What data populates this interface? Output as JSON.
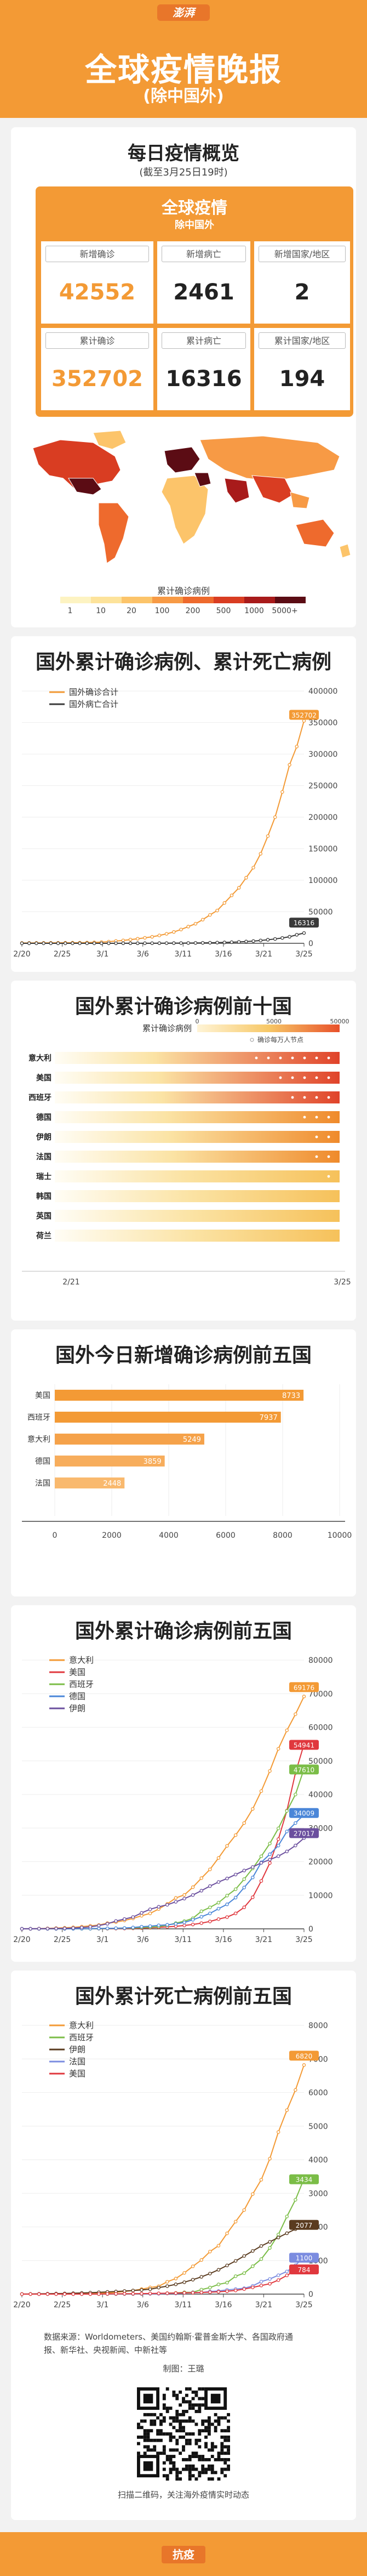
{
  "header": {
    "logo": "澎湃",
    "title": "全球疫情晚报",
    "subtitle": "(除中国外)"
  },
  "overview": {
    "title": "每日疫情概览",
    "date_note": "(截至3月25日19时)",
    "card_title": "全球疫情",
    "card_subtitle": "除中国外",
    "stats": [
      {
        "label": "新增确诊",
        "value": "42552"
      },
      {
        "label": "新增病亡",
        "value": "2461"
      },
      {
        "label": "新增国家/地区",
        "value": "2"
      },
      {
        "label": "累计确诊",
        "value": "352702"
      },
      {
        "label": "累计病亡",
        "value": "16316"
      },
      {
        "label": "累计国家/地区",
        "value": "194"
      }
    ]
  },
  "map": {
    "legend_title": "累计确诊病例",
    "legend_labels": [
      "1",
      "10",
      "20",
      "100",
      "200",
      "500",
      "1000",
      "5000+"
    ],
    "legend_colors": [
      "#fdf3c2",
      "#fde39b",
      "#fcc46a",
      "#f79a45",
      "#ee6a2d",
      "#d93d22",
      "#a81b1b",
      "#5b0c14"
    ]
  },
  "chart_data": [
    {
      "type": "line",
      "title": "国外累计确诊病例、累计死亡病例",
      "x_ticks": [
        "2/20",
        "2/25",
        "3/1",
        "3/6",
        "3/11",
        "3/16",
        "3/21",
        "3/25"
      ],
      "ylim": [
        0,
        400000
      ],
      "y_ticks": [
        "0",
        "50000",
        "100000",
        "150000",
        "200000",
        "250000",
        "300000",
        "350000",
        "400000"
      ],
      "series": [
        {
          "name": "国外确诊合计",
          "color": "#f39a35",
          "end_label": "352702",
          "values": [
            500,
            560,
            630,
            690,
            760,
            800,
            870,
            930,
            1030,
            1200,
            1500,
            1900,
            2600,
            3600,
            4600,
            5900,
            7200,
            8700,
            10300,
            12500,
            15000,
            18000,
            21900,
            26500,
            31000,
            37500,
            45000,
            52000,
            64000,
            76000,
            88000,
            104000,
            120000,
            142000,
            170000,
            200000,
            240000,
            283000,
            312000,
            352702
          ]
        },
        {
          "name": "国外病亡合计",
          "color": "#3a3a3a",
          "end_label": "16316",
          "values": [
            0,
            0,
            0,
            0,
            0,
            0,
            0,
            0,
            0,
            5,
            10,
            20,
            30,
            40,
            55,
            70,
            90,
            110,
            140,
            180,
            220,
            280,
            350,
            450,
            560,
            700,
            880,
            1100,
            1400,
            1750,
            2200,
            2800,
            3500,
            4500,
            5600,
            6900,
            8500,
            10400,
            13500,
            16316
          ]
        }
      ]
    },
    {
      "type": "table",
      "title": "国外累计确诊病例前十国",
      "legend_title": "累计确诊病例",
      "legend_ticks": [
        "0",
        "5000",
        "50000"
      ],
      "legend_note": "确诊每万人节点",
      "x_start": "2/21",
      "x_end": "3/25",
      "countries": [
        {
          "name": "意大利",
          "intensity": 1.0,
          "dots": 7
        },
        {
          "name": "美国",
          "intensity": 0.92,
          "dots": 5
        },
        {
          "name": "西班牙",
          "intensity": 0.88,
          "dots": 4
        },
        {
          "name": "德国",
          "intensity": 0.82,
          "dots": 3
        },
        {
          "name": "伊朗",
          "intensity": 0.78,
          "dots": 2
        },
        {
          "name": "法国",
          "intensity": 0.74,
          "dots": 2
        },
        {
          "name": "瑞士",
          "intensity": 0.6,
          "dots": 1
        },
        {
          "name": "韩国",
          "intensity": 0.5,
          "dots": 0
        },
        {
          "name": "英国",
          "intensity": 0.48,
          "dots": 0
        },
        {
          "name": "荷兰",
          "intensity": 0.45,
          "dots": 0
        }
      ]
    },
    {
      "type": "bar",
      "title": "国外今日新增确诊病例前五国",
      "categories": [
        "美国",
        "西班牙",
        "意大利",
        "德国",
        "法国"
      ],
      "values": [
        8733,
        7937,
        5249,
        3859,
        2448
      ],
      "colors": [
        "#f39a35",
        "#f39a35",
        "#f5a24a",
        "#f7ad5c",
        "#f9b96e"
      ],
      "xlim": [
        0,
        10000
      ],
      "x_ticks": [
        "0",
        "2000",
        "4000",
        "6000",
        "8000",
        "10000"
      ]
    },
    {
      "type": "line",
      "title": "国外累计确诊病例前五国",
      "x_ticks": [
        "2/20",
        "2/25",
        "3/1",
        "3/6",
        "3/11",
        "3/16",
        "3/21",
        "3/25"
      ],
      "ylim": [
        0,
        80000
      ],
      "y_ticks": [
        "0",
        "10000",
        "20000",
        "30000",
        "40000",
        "50000",
        "60000",
        "70000",
        "80000"
      ],
      "series": [
        {
          "name": "意大利",
          "color": "#f39a35",
          "end_label": "69176",
          "values": [
            3,
            20,
            80,
            150,
            230,
            320,
            450,
            650,
            890,
            1130,
            1700,
            2000,
            2500,
            3100,
            3900,
            4600,
            5900,
            7400,
            9200,
            10100,
            12400,
            15100,
            17700,
            21100,
            24700,
            27900,
            31500,
            35700,
            41000,
            47000,
            53600,
            59100,
            63900,
            69176
          ]
        },
        {
          "name": "美国",
          "color": "#e0383e",
          "end_label": "54941",
          "values": [
            15,
            15,
            15,
            35,
            35,
            53,
            57,
            60,
            60,
            62,
            70,
            90,
            110,
            150,
            220,
            330,
            450,
            580,
            760,
            1000,
            1300,
            1700,
            2200,
            2900,
            3500,
            4600,
            6400,
            9400,
            14250,
            19600,
            26700,
            35200,
            46400,
            54941
          ]
        },
        {
          "name": "西班牙",
          "color": "#7bbd47",
          "end_label": "47610",
          "values": [
            0,
            0,
            0,
            2,
            6,
            12,
            25,
            32,
            45,
            84,
            120,
            165,
            228,
            282,
            400,
            500,
            673,
            1070,
            1690,
            2280,
            3150,
            5230,
            6390,
            7800,
            9900,
            11800,
            14800,
            18000,
            21600,
            25400,
            29900,
            35100,
            40000,
            47610
          ]
        },
        {
          "name": "德国",
          "color": "#4a86d8",
          "end_label": "34009",
          "values": [
            16,
            16,
            16,
            16,
            18,
            21,
            26,
            53,
            66,
            117,
            150,
            188,
            240,
            400,
            640,
            800,
            1040,
            1200,
            1500,
            1900,
            2700,
            3600,
            4600,
            6000,
            7300,
            9300,
            12300,
            15300,
            19800,
            22200,
            24800,
            29000,
            31500,
            34009
          ]
        },
        {
          "name": "伊朗",
          "color": "#6b4f9e",
          "end_label": "27017",
          "values": [
            5,
            18,
            43,
            61,
            95,
            139,
            245,
            388,
            593,
            978,
            1501,
            2336,
            2922,
            3513,
            4747,
            5823,
            6566,
            7161,
            8042,
            9000,
            10075,
            11364,
            12729,
            13938,
            14991,
            16169,
            17361,
            18407,
            19644,
            20610,
            21638,
            23049,
            24811,
            27017
          ]
        }
      ]
    },
    {
      "type": "line",
      "title": "国外累计死亡病例前五国",
      "x_ticks": [
        "2/20",
        "2/25",
        "3/1",
        "3/6",
        "3/11",
        "3/16",
        "3/21",
        "3/25"
      ],
      "ylim": [
        0,
        8000
      ],
      "y_ticks": [
        "0",
        "1000",
        "2000",
        "3000",
        "4000",
        "5000",
        "6000",
        "7000",
        "8000"
      ],
      "series": [
        {
          "name": "意大利",
          "color": "#f39a35",
          "end_label": "6820",
          "values": [
            0,
            1,
            3,
            7,
            10,
            12,
            17,
            21,
            29,
            34,
            52,
            79,
            107,
            148,
            197,
            233,
            366,
            463,
            631,
            827,
            1016,
            1266,
            1441,
            1809,
            2158,
            2503,
            2978,
            3405,
            4032,
            4825,
            5476,
            6077,
            6820
          ]
        },
        {
          "name": "西班牙",
          "color": "#7bbd47",
          "end_label": "3434",
          "values": [
            0,
            0,
            0,
            0,
            0,
            0,
            0,
            0,
            0,
            0,
            0,
            1,
            2,
            3,
            5,
            10,
            17,
            28,
            35,
            54,
            55,
            133,
            195,
            289,
            342,
            533,
            623,
            830,
            1043,
            1375,
            1772,
            2311,
            2808,
            3434
          ]
        },
        {
          "name": "伊朗",
          "color": "#5a3b1f",
          "end_label": "2077",
          "values": [
            2,
            4,
            8,
            12,
            16,
            19,
            26,
            34,
            43,
            54,
            66,
            77,
            92,
            107,
            124,
            145,
            194,
            237,
            291,
            354,
            429,
            514,
            611,
            724,
            853,
            988,
            1135,
            1284,
            1433,
            1556,
            1685,
            1812,
            1934,
            2077
          ]
        },
        {
          "name": "法国",
          "color": "#7b8ce0",
          "end_label": "1100",
          "values": [
            1,
            1,
            1,
            1,
            1,
            1,
            2,
            2,
            2,
            3,
            4,
            4,
            7,
            9,
            11,
            19,
            19,
            33,
            48,
            48,
            79,
            91,
            127,
            148,
            175,
            244,
            372,
            450,
            562,
            674,
            860,
            1100
          ]
        },
        {
          "name": "美国",
          "color": "#e0383e",
          "end_label": "784",
          "values": [
            0,
            0,
            0,
            0,
            0,
            0,
            0,
            0,
            1,
            2,
            6,
            9,
            11,
            12,
            15,
            19,
            22,
            26,
            30,
            38,
            41,
            48,
            57,
            69,
            85,
            108,
            150,
            200,
            255,
            309,
            417,
            557,
            706,
            784
          ]
        }
      ]
    }
  ],
  "footer": {
    "source_lines": [
      "数据来源：Worldometers、美国约翰斯·霍普金斯大学、各国政府通",
      "报、新华社、央视新闻、中新社等"
    ],
    "credit": "制图：王璐",
    "qr_caption": "扫描二维码，关注海外疫情实时动态",
    "bottom_tag": "抗疫"
  }
}
